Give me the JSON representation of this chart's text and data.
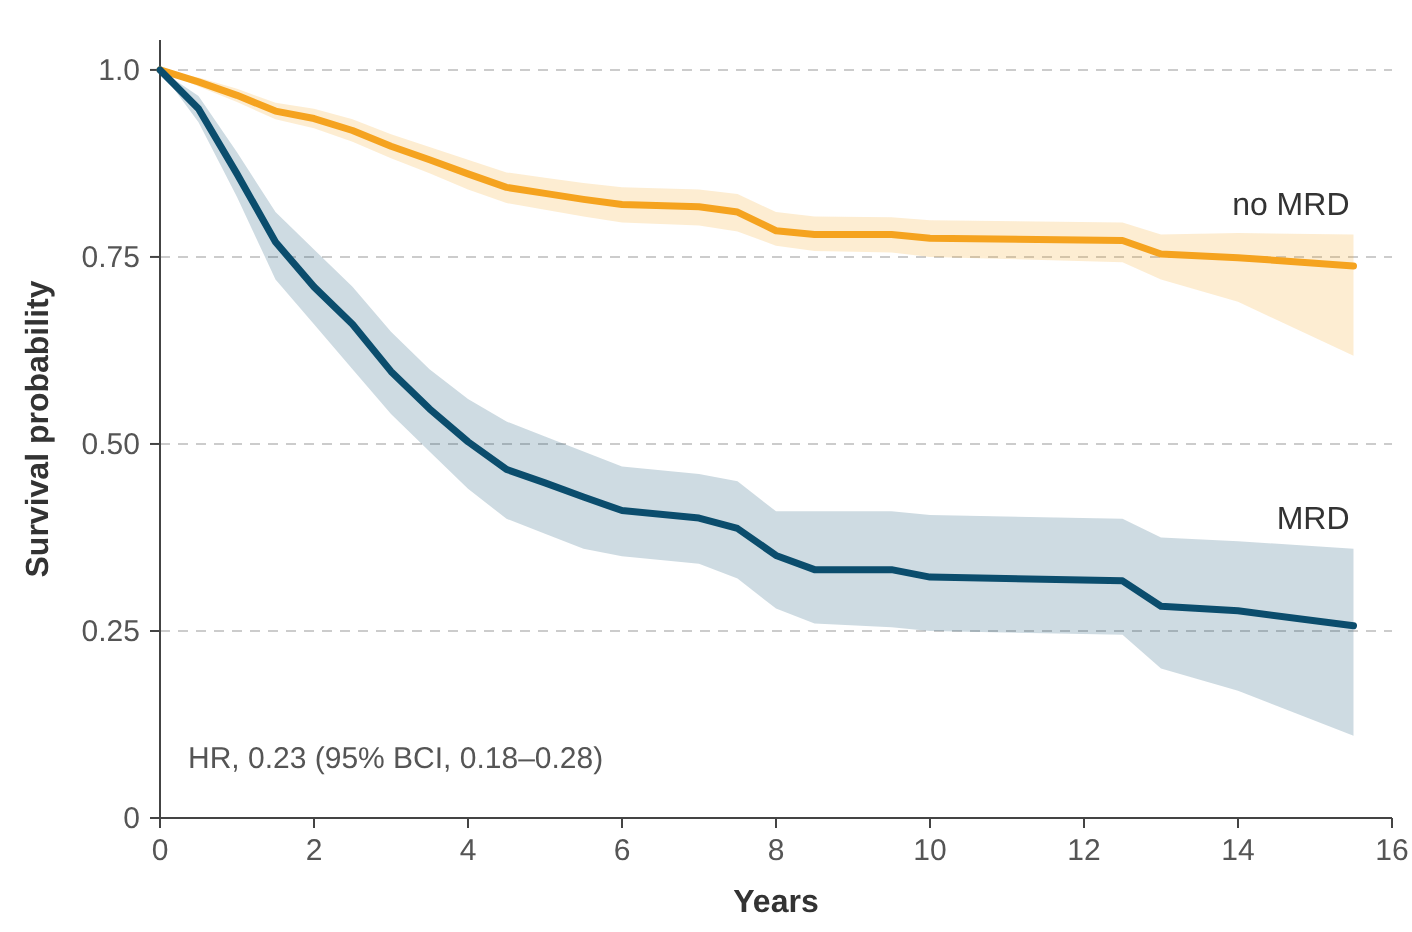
{
  "chart_data": {
    "type": "line",
    "xlabel": "Years",
    "ylabel": "Survival probability",
    "xlim": [
      0,
      16
    ],
    "ylim": [
      0,
      1.04
    ],
    "xticks": [
      0,
      2,
      4,
      6,
      8,
      10,
      12,
      14,
      16
    ],
    "yticks": [
      0,
      0.25,
      {
        "value": 0.5,
        "label": "0.50"
      },
      0.75,
      {
        "value": 1,
        "label": "1.0"
      }
    ],
    "grid": "y",
    "legend": false,
    "annotations": [
      "HR, 0.23 (95% BCI, 0.18–0.28)"
    ],
    "series": [
      {
        "name": "no MRD",
        "color": "#f5a31f",
        "x": [
          0,
          0.5,
          1,
          1.5,
          2,
          2.5,
          3,
          3.5,
          4,
          4.5,
          5,
          5.5,
          6,
          7,
          7.5,
          8,
          8.5,
          9.5,
          10,
          12.5,
          13,
          14,
          15.5
        ],
        "values": [
          1,
          0.984,
          0.966,
          0.945,
          0.935,
          0.919,
          0.898,
          0.88,
          0.861,
          0.843,
          0.835,
          0.827,
          0.82,
          0.817,
          0.81,
          0.785,
          0.78,
          0.78,
          0.775,
          0.772,
          0.754,
          0.749,
          0.738
        ],
        "lower": [
          1,
          0.978,
          0.957,
          0.934,
          0.922,
          0.904,
          0.882,
          0.862,
          0.84,
          0.822,
          0.813,
          0.804,
          0.796,
          0.792,
          0.784,
          0.765,
          0.758,
          0.756,
          0.75,
          0.743,
          0.72,
          0.69,
          0.618
        ],
        "upper": [
          1,
          0.99,
          0.975,
          0.956,
          0.948,
          0.934,
          0.914,
          0.897,
          0.88,
          0.863,
          0.856,
          0.849,
          0.843,
          0.84,
          0.834,
          0.81,
          0.804,
          0.803,
          0.799,
          0.796,
          0.78,
          0.782,
          0.78
        ]
      },
      {
        "name": "MRD",
        "color": "#0b4d6d",
        "x": [
          0,
          0.5,
          1,
          1.5,
          2,
          2.5,
          3,
          3.5,
          4,
          4.5,
          5,
          5.5,
          6,
          7,
          7.5,
          8,
          8.5,
          9.5,
          10,
          12.5,
          13,
          14,
          15.5
        ],
        "values": [
          1,
          0.948,
          0.861,
          0.77,
          0.71,
          0.66,
          0.597,
          0.547,
          0.503,
          0.466,
          0.448,
          0.429,
          0.411,
          0.401,
          0.387,
          0.351,
          0.332,
          0.332,
          0.322,
          0.317,
          0.283,
          0.277,
          0.257
        ],
        "lower": [
          1,
          0.93,
          0.83,
          0.72,
          0.66,
          0.6,
          0.54,
          0.49,
          0.44,
          0.4,
          0.38,
          0.36,
          0.35,
          0.34,
          0.32,
          0.28,
          0.26,
          0.255,
          0.25,
          0.245,
          0.2,
          0.17,
          0.11
        ],
        "upper": [
          1,
          0.965,
          0.89,
          0.81,
          0.76,
          0.71,
          0.65,
          0.6,
          0.56,
          0.53,
          0.51,
          0.49,
          0.47,
          0.46,
          0.45,
          0.41,
          0.41,
          0.41,
          0.405,
          0.4,
          0.375,
          0.37,
          0.36
        ]
      }
    ]
  }
}
